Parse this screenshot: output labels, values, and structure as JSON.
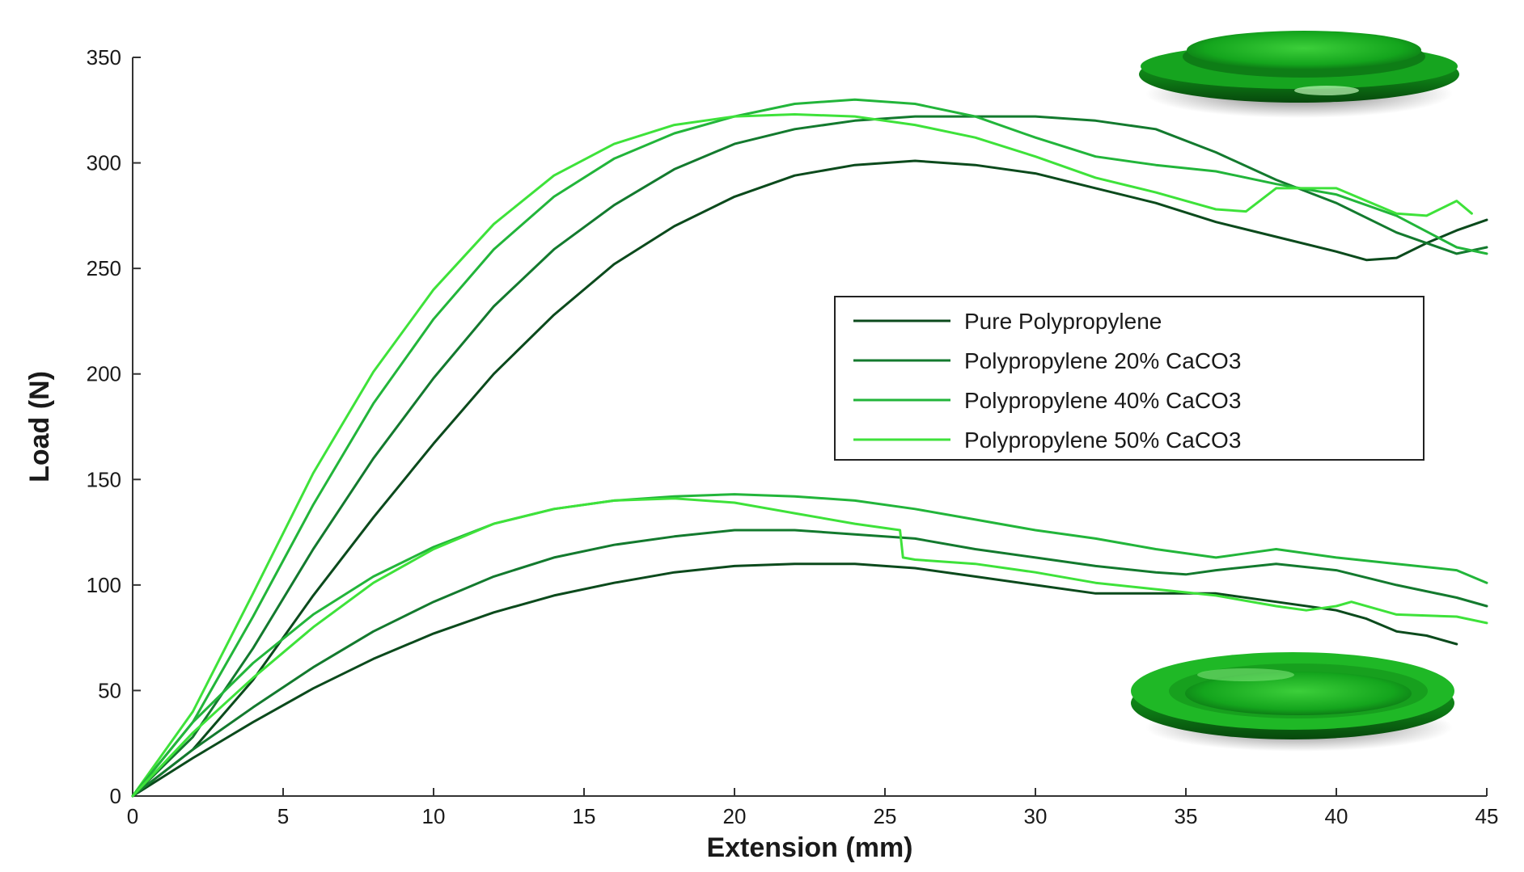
{
  "chart_data": {
    "type": "line",
    "title": "",
    "xlabel": "Extension (mm)",
    "ylabel": "Load (N)",
    "xlim": [
      0,
      45
    ],
    "ylim": [
      0,
      350
    ],
    "x_ticks": [
      0,
      5,
      10,
      15,
      20,
      25,
      30,
      35,
      40,
      45
    ],
    "y_ticks": [
      0,
      50,
      100,
      150,
      200,
      250,
      300,
      350
    ],
    "grid": false,
    "legend_position": "center-right",
    "series": [
      {
        "name": "Pure Polypropylene",
        "group": "upper",
        "color": "#0b4a1c",
        "x": [
          0,
          2,
          4,
          6,
          8,
          10,
          12,
          14,
          16,
          18,
          20,
          22,
          24,
          26,
          28,
          30,
          32,
          34,
          36,
          38,
          40,
          41,
          42,
          43,
          44,
          45
        ],
        "y": [
          0,
          22,
          55,
          95,
          132,
          167,
          200,
          228,
          252,
          270,
          284,
          294,
          299,
          301,
          299,
          295,
          288,
          281,
          272,
          265,
          258,
          254,
          255,
          262,
          268,
          273
        ]
      },
      {
        "name": "Polypropylene 20% CaCO3",
        "group": "upper",
        "color": "#137a2e",
        "x": [
          0,
          2,
          4,
          6,
          8,
          10,
          12,
          14,
          16,
          18,
          20,
          22,
          24,
          26,
          28,
          30,
          32,
          34,
          36,
          38,
          40,
          42,
          44,
          45
        ],
        "y": [
          0,
          28,
          70,
          117,
          160,
          198,
          232,
          259,
          280,
          297,
          309,
          316,
          320,
          322,
          322,
          322,
          320,
          316,
          305,
          292,
          281,
          267,
          257,
          260
        ]
      },
      {
        "name": "Polypropylene 40% CaCO3",
        "group": "upper",
        "color": "#22b53a",
        "x": [
          0,
          2,
          4,
          6,
          8,
          10,
          12,
          14,
          16,
          18,
          20,
          22,
          24,
          26,
          28,
          30,
          32,
          34,
          36,
          38,
          40,
          42,
          44,
          45
        ],
        "y": [
          0,
          35,
          85,
          138,
          186,
          226,
          259,
          284,
          302,
          314,
          322,
          328,
          330,
          328,
          322,
          312,
          303,
          299,
          296,
          290,
          285,
          275,
          260,
          257
        ]
      },
      {
        "name": "Polypropylene 50% CaCO3",
        "group": "upper",
        "color": "#3ee23a",
        "x": [
          0,
          2,
          4,
          6,
          8,
          10,
          12,
          14,
          16,
          18,
          20,
          22,
          24,
          26,
          28,
          30,
          32,
          34,
          35,
          36,
          37,
          38,
          40,
          42,
          43,
          44,
          44.5
        ],
        "y": [
          0,
          40,
          96,
          153,
          201,
          240,
          271,
          294,
          309,
          318,
          322,
          323,
          322,
          318,
          312,
          303,
          293,
          286,
          282,
          278,
          277,
          288,
          288,
          276,
          275,
          282,
          276
        ]
      },
      {
        "name": "Pure Polypropylene",
        "group": "lower",
        "color": "#0b4a1c",
        "x": [
          0,
          2,
          4,
          6,
          8,
          10,
          12,
          14,
          16,
          18,
          20,
          22,
          24,
          26,
          28,
          30,
          32,
          34,
          36,
          38,
          40,
          41,
          42,
          43,
          44
        ],
        "y": [
          0,
          18,
          35,
          51,
          65,
          77,
          87,
          95,
          101,
          106,
          109,
          110,
          110,
          108,
          104,
          100,
          96,
          96,
          96,
          92,
          88,
          84,
          78,
          76,
          72
        ]
      },
      {
        "name": "Polypropylene 20% CaCO3",
        "group": "lower",
        "color": "#137a2e",
        "x": [
          0,
          2,
          4,
          6,
          8,
          10,
          12,
          14,
          16,
          18,
          20,
          22,
          24,
          26,
          28,
          30,
          32,
          34,
          35,
          36,
          38,
          40,
          42,
          44,
          45
        ],
        "y": [
          0,
          22,
          42,
          61,
          78,
          92,
          104,
          113,
          119,
          123,
          126,
          126,
          124,
          122,
          117,
          113,
          109,
          106,
          105,
          107,
          110,
          107,
          100,
          94,
          90
        ]
      },
      {
        "name": "Polypropylene 40% CaCO3",
        "group": "lower",
        "color": "#22b53a",
        "x": [
          0,
          2,
          4,
          6,
          8,
          10,
          12,
          14,
          16,
          18,
          20,
          22,
          24,
          26,
          28,
          30,
          32,
          34,
          36,
          37,
          38,
          40,
          42,
          44,
          45
        ],
        "y": [
          0,
          35,
          63,
          86,
          104,
          118,
          129,
          136,
          140,
          142,
          143,
          142,
          140,
          136,
          131,
          126,
          122,
          117,
          113,
          115,
          117,
          113,
          110,
          107,
          101
        ]
      },
      {
        "name": "Polypropylene 50% CaCO3",
        "group": "lower",
        "color": "#3ee23a",
        "x": [
          0,
          2,
          4,
          6,
          8,
          10,
          12,
          14,
          16,
          18,
          20,
          22,
          24,
          25.5,
          25.6,
          26,
          28,
          30,
          32,
          34,
          36,
          38,
          39,
          40,
          40.5,
          42,
          44,
          45
        ],
        "y": [
          0,
          30,
          56,
          80,
          101,
          117,
          129,
          136,
          140,
          141,
          139,
          134,
          129,
          126,
          113,
          112,
          110,
          106,
          101,
          98,
          95,
          90,
          88,
          90,
          92,
          86,
          85,
          82
        ]
      }
    ]
  }
}
